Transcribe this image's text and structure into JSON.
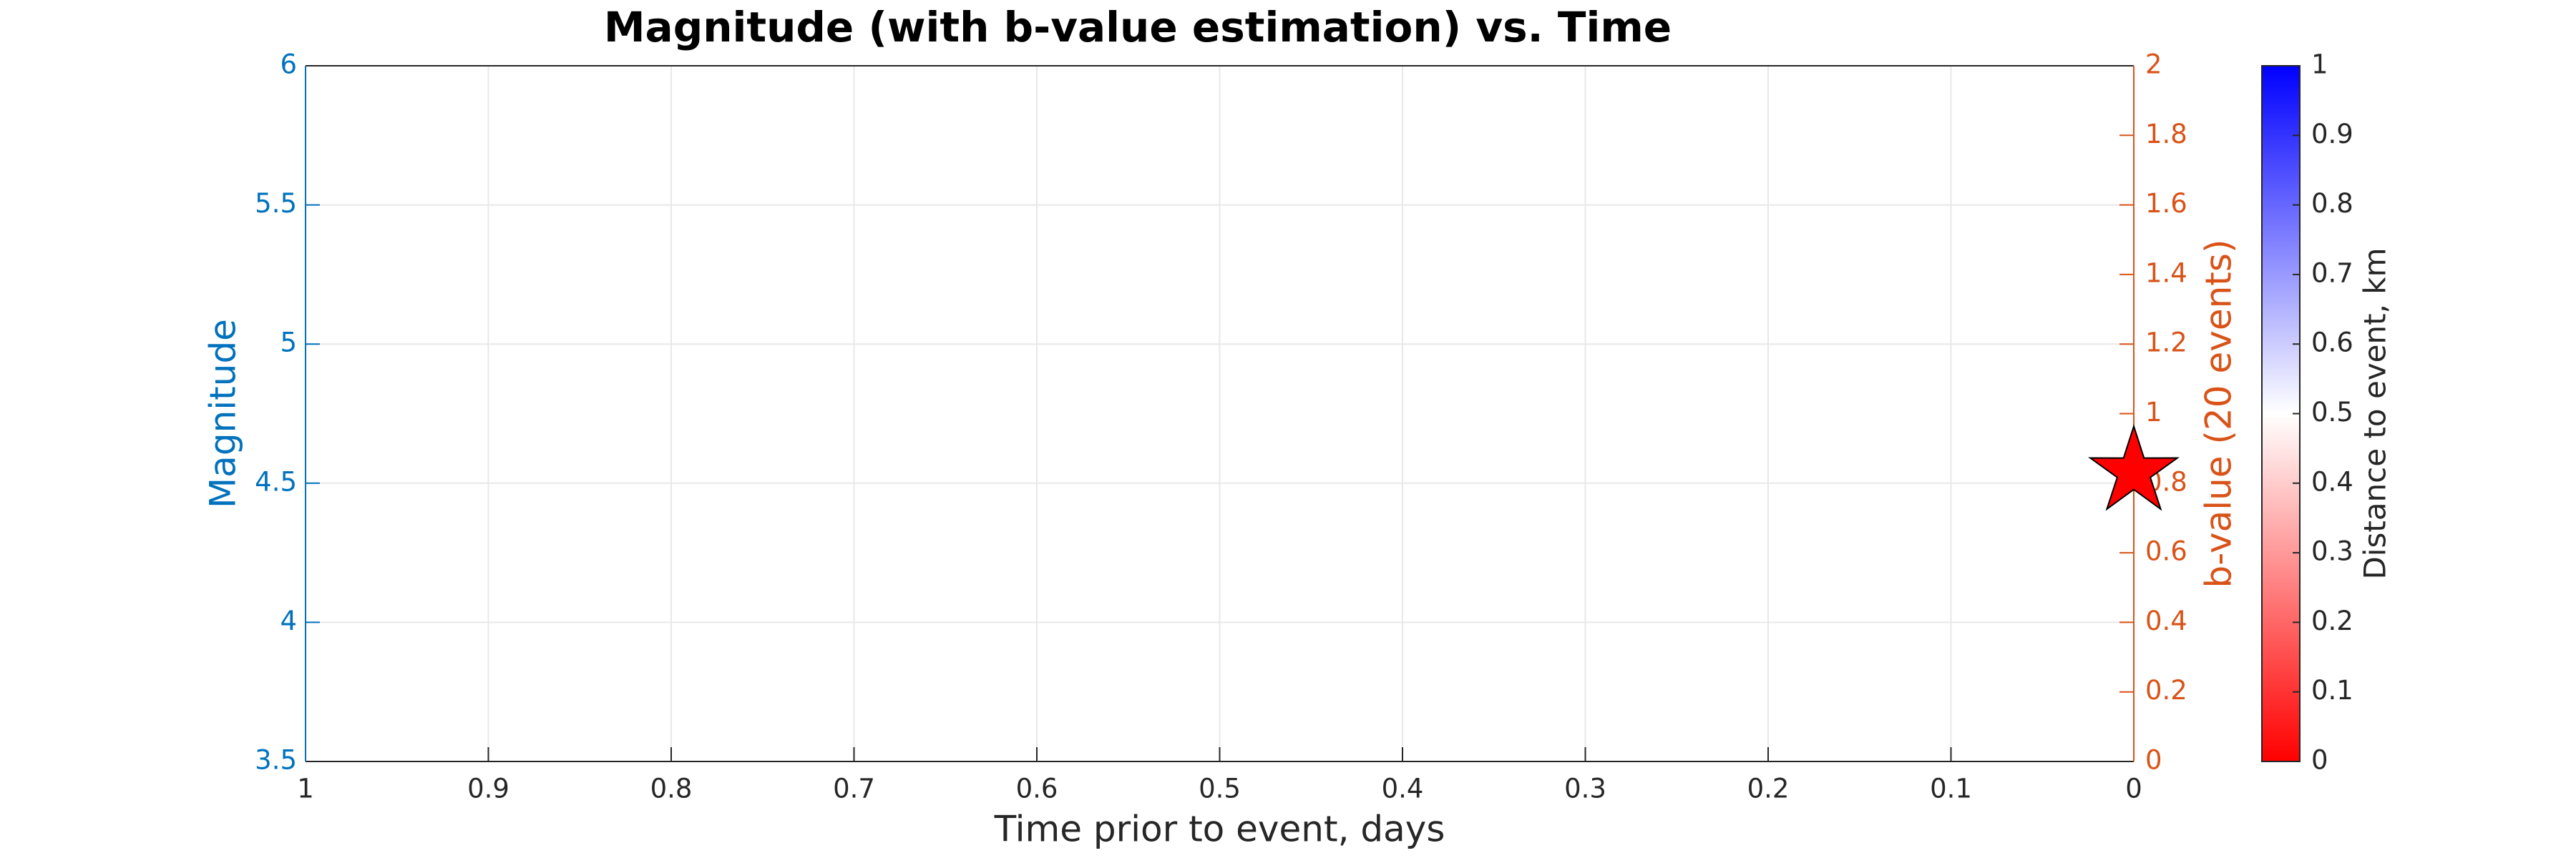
{
  "chart_data": {
    "type": "scatter",
    "title": "Magnitude (with b-value estimation) vs. Time",
    "xlabel": "Time prior to event, days",
    "ylabel": "Magnitude",
    "y2label": "b-value (20 events)",
    "x": [
      0
    ],
    "values": [
      4.54
    ],
    "marker": "star",
    "color": "#ff0000",
    "xlim": [
      1,
      0
    ],
    "xticks": [
      1,
      0.9,
      0.8,
      0.7,
      0.6,
      0.5,
      0.4,
      0.3,
      0.2,
      0.1,
      0
    ],
    "ylim": [
      3.5,
      6
    ],
    "yticks": [
      3.5,
      4,
      4.5,
      5,
      5.5,
      6
    ],
    "y2lim": [
      0,
      2
    ],
    "y2ticks": [
      0,
      0.2,
      0.4,
      0.6,
      0.8,
      1,
      1.2,
      1.4,
      1.6,
      1.8,
      2
    ],
    "ycolor": "#0072bd",
    "y2color": "#d95319",
    "grid": true,
    "colorbar": {
      "label": "Distance to event, km",
      "lim": [
        0,
        1
      ],
      "ticks": [
        0,
        0.1,
        0.2,
        0.3,
        0.4,
        0.5,
        0.6,
        0.7,
        0.8,
        0.9,
        1
      ],
      "colors": [
        "#ff0000",
        "#ffffff",
        "#0000ff"
      ]
    }
  }
}
